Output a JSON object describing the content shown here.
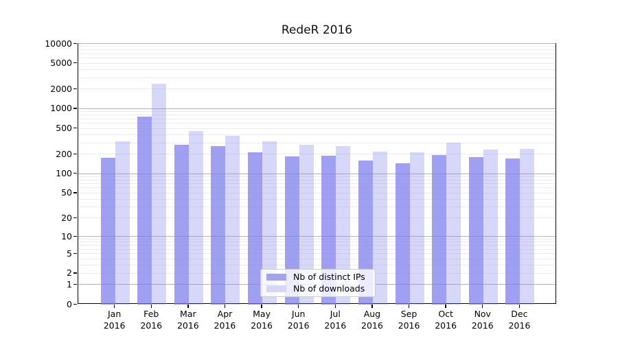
{
  "figure": {
    "title": "RedeR 2016"
  },
  "chart_data": {
    "type": "bar",
    "title": "RedeR 2016",
    "categories": [
      "Jan",
      "Feb",
      "Mar",
      "Apr",
      "May",
      "Jun",
      "Jul",
      "Aug",
      "Sep",
      "Oct",
      "Nov",
      "Dec"
    ],
    "category_year": "2016",
    "series": [
      {
        "name": "Nb of distinct IPs",
        "values": [
          180,
          770,
          284,
          268,
          217,
          185,
          192,
          160,
          145,
          197,
          182,
          172
        ]
      },
      {
        "name": "Nb of downloads",
        "values": [
          320,
          2450,
          455,
          386,
          323,
          281,
          270,
          223,
          214,
          303,
          238,
          242
        ]
      }
    ],
    "xlabel": "",
    "ylabel": "",
    "yticks": [
      0,
      1,
      2,
      5,
      10,
      20,
      50,
      100,
      200,
      500,
      1000,
      2000,
      5000,
      10000
    ],
    "ylim": [
      0,
      10000
    ],
    "yscale": "log10(value+1)",
    "grid": {
      "major_at": "decades",
      "minor_at": "2-9 per decade",
      "on": true
    },
    "legend_position": "inside-bottom-center"
  },
  "colors": {
    "bar_base_rgb": [
      123,
      123,
      237
    ],
    "bar_alphas": [
      0.72,
      0.3
    ],
    "bar_rendered_hex": [
      "#a2a2ee",
      "#d6d6f7"
    ],
    "grid_major": "#b3b3b3",
    "grid_minor": "#ebebeb",
    "axis": "#000000",
    "legend_border": "#cccccc"
  }
}
